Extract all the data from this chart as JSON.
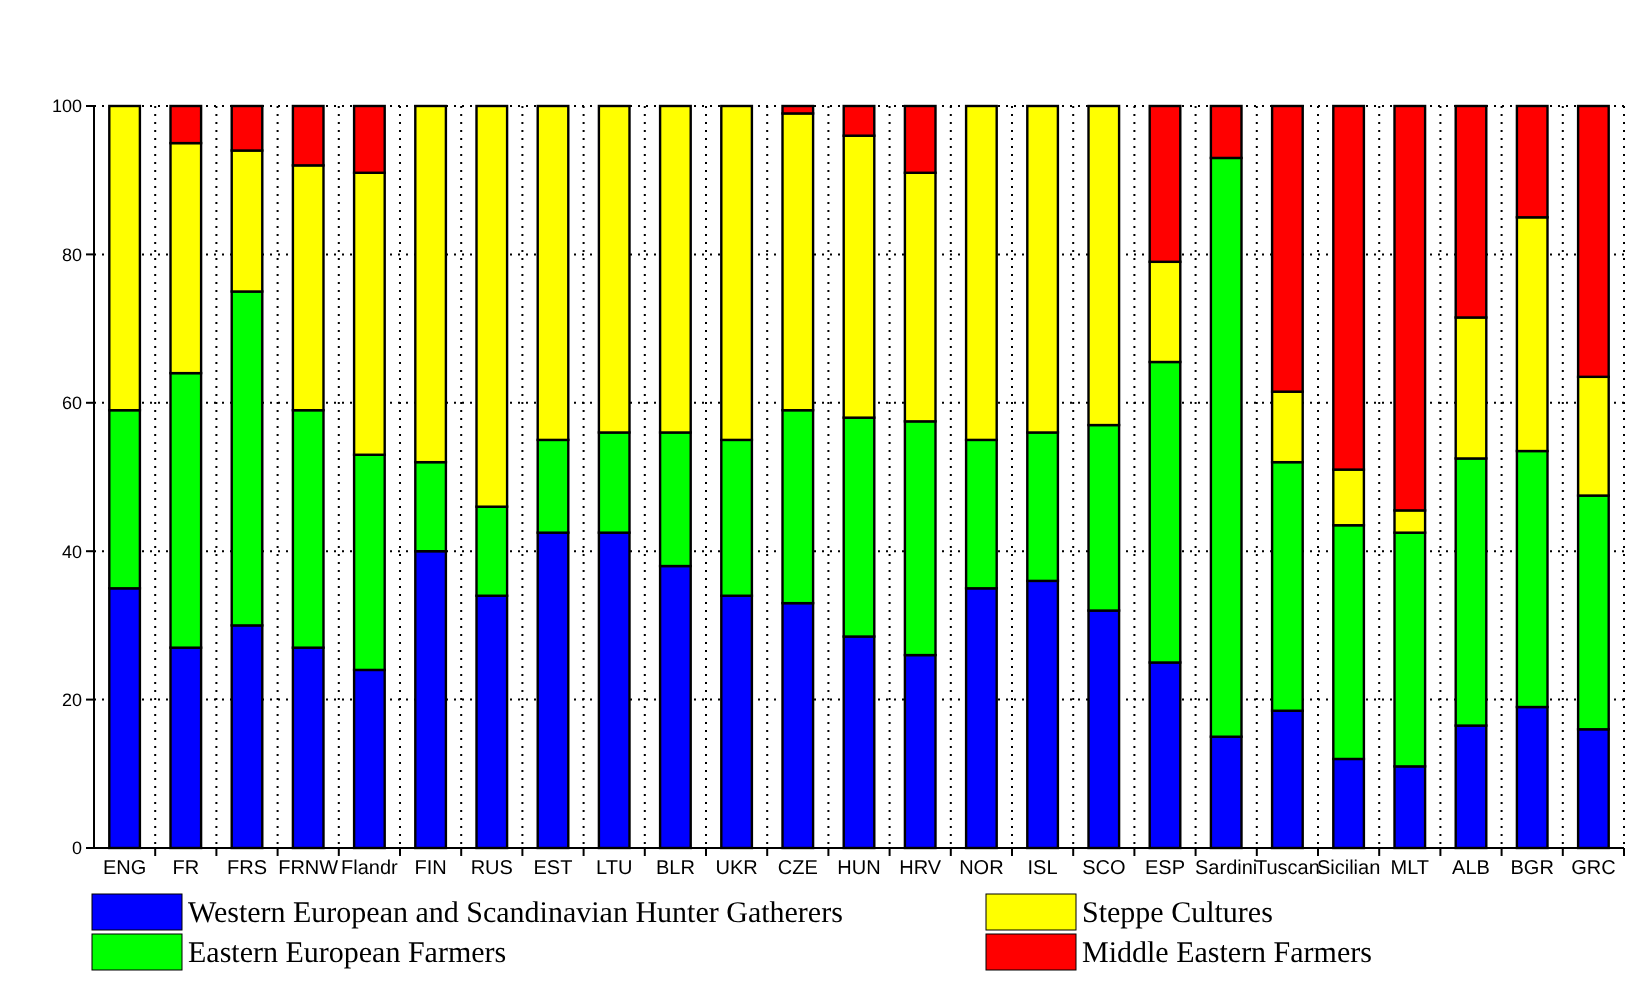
{
  "chart_data": {
    "type": "bar",
    "stacked": true,
    "categories": [
      "ENG",
      "FR",
      "FRS",
      "FRNW",
      "Flandr",
      "FIN",
      "RUS",
      "EST",
      "LTU",
      "BLR",
      "UKR",
      "CZE",
      "HUN",
      "HRV",
      "NOR",
      "ISL",
      "SCO",
      "ESP",
      "Sardini",
      "Tuscan",
      "Sicilian",
      "MLT",
      "ALB",
      "BGR",
      "GRC"
    ],
    "series": [
      {
        "name": "Western European and Scandinavian Hunter Gatherers",
        "color": "#0000ff",
        "values": [
          35,
          27,
          30,
          27,
          24,
          40,
          34,
          42.5,
          42.5,
          38,
          34,
          33,
          28.5,
          26,
          35,
          36,
          32,
          25,
          15,
          18.5,
          12,
          11,
          16.5,
          19,
          16
        ]
      },
      {
        "name": "Eastern European Farmers",
        "color": "#00ff00",
        "values": [
          24,
          37,
          45,
          32,
          29,
          12,
          12,
          12.5,
          13.5,
          18,
          21,
          26,
          29.5,
          31.5,
          20,
          20,
          25,
          40.5,
          78,
          33.5,
          31.5,
          31.5,
          36,
          34.5,
          31.5
        ]
      },
      {
        "name": "Steppe Cultures",
        "color": "#ffff00",
        "values": [
          41,
          31,
          19,
          33,
          38,
          48,
          54,
          45,
          44,
          44,
          45,
          40,
          38,
          33.5,
          45,
          44,
          43,
          13.5,
          0,
          9.5,
          7.5,
          3,
          19,
          31.5,
          16
        ]
      },
      {
        "name": "Middle Eastern Farmers",
        "color": "#ff0000",
        "values": [
          0,
          5,
          6,
          8,
          9,
          0,
          0,
          0,
          0,
          0,
          0,
          1,
          4,
          9,
          0,
          0,
          0,
          21,
          7,
          38.5,
          49,
          54.5,
          28.5,
          15,
          36.5
        ]
      }
    ],
    "ylim": [
      0,
      100
    ],
    "yticks": [
      0,
      20,
      40,
      60,
      80,
      100
    ],
    "grid": true,
    "legend": "bottom"
  }
}
